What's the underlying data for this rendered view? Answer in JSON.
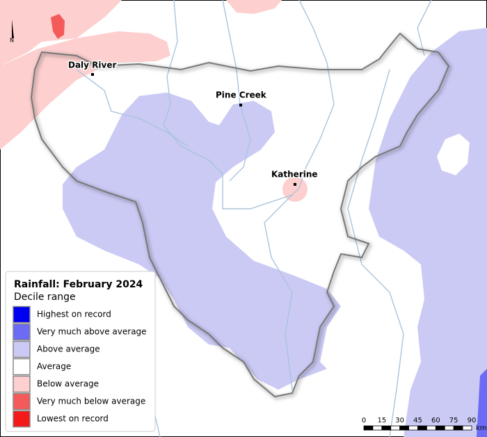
{
  "map": {
    "north": "N",
    "towns": [
      "Daly River",
      "Pine Creek",
      "Katherine"
    ]
  },
  "legend": {
    "title": "Rainfall: February 2024",
    "subtitle": "Decile range",
    "items": [
      {
        "label": "Highest on record",
        "color": "#0000f0"
      },
      {
        "label": "Very much above average",
        "color": "#6b6bf5"
      },
      {
        "label": "Above average",
        "color": "#cacaf5"
      },
      {
        "label": "Average",
        "color": "#ffffff"
      },
      {
        "label": "Below average",
        "color": "#fdcfcf"
      },
      {
        "label": "Very much below average",
        "color": "#f55a5a"
      },
      {
        "label": "Lowest on record",
        "color": "#f51a1a"
      }
    ]
  },
  "scale": {
    "ticks": [
      0,
      15,
      30,
      45,
      60,
      75,
      90
    ],
    "unit": "km"
  }
}
